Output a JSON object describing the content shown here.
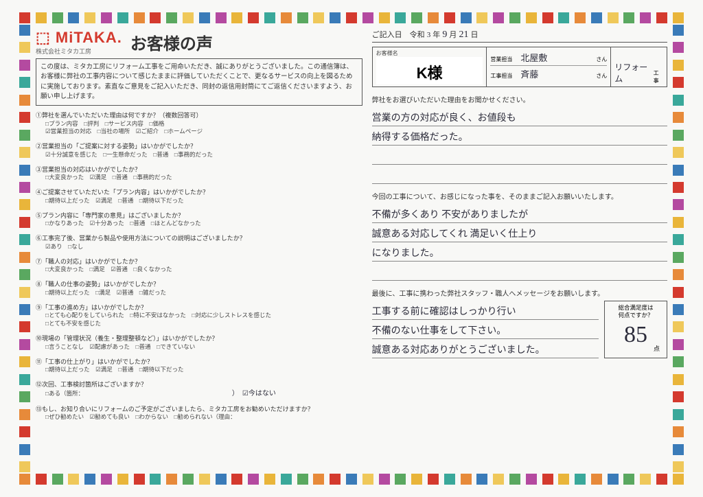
{
  "border_colors": [
    "#d43a2e",
    "#e9b53a",
    "#5aa860",
    "#3a7bb8",
    "#efc85a",
    "#b44aa0",
    "#3aa89a",
    "#e78a3a",
    "#d43a2e",
    "#5aa860",
    "#efc85a",
    "#3a7bb8",
    "#b44aa0",
    "#e9b53a",
    "#d43a2e",
    "#3aa89a",
    "#e78a3a",
    "#5aa860",
    "#efc85a",
    "#3a7bb8",
    "#d43a2e",
    "#b44aa0",
    "#e9b53a",
    "#3aa89a",
    "#5aa860",
    "#e78a3a",
    "#d43a2e",
    "#3a7bb8",
    "#efc85a",
    "#b44aa0",
    "#5aa860",
    "#e9b53a",
    "#d43a2e",
    "#3aa89a",
    "#e78a3a",
    "#3a7bb8",
    "#efc85a",
    "#5aa860",
    "#b44aa0",
    "#d43a2e",
    "#e9b53a",
    "#3aa89a",
    "#e78a3a",
    "#3a7bb8",
    "#5aa860",
    "#efc85a"
  ],
  "logo": {
    "main": "⬚ MiTAKA.",
    "sub": "株式会社ミタカ工房"
  },
  "title": "お客様の声",
  "intro": "この度は、ミタカ工房にリフォーム工事をご用命いただき、誠にありがとうございました。この通信簿は、お客様に弊社の工事内容について感じたままに評価していただくことで、更なるサービスの向上を図るために実施しております。素直なご意見をご記入いただき、同封の返信用封筒にてご返信くださいますよう、お願い申し上げます。",
  "questions": [
    {
      "t": "①弊社を選んでいただいた理由は何ですか？（複数回答可）",
      "o": "□プラン内容　□評判　□サービス内容　□価格\n☑営業担当の対応　□当社の場所　☑ご紹介　□ホームページ"
    },
    {
      "t": "②営業担当の「ご提案に対する姿勢」はいかがでしたか？",
      "o": "☑十分誠意を感じた　□一生懸命だった　□普通　□事務的だった"
    },
    {
      "t": "③営業担当の対応はいかがでしたか？",
      "o": "□大変良かった　☑満足　□普通　□事務的だった"
    },
    {
      "t": "④ご提案させていただいた「プラン内容」はいかがでしたか？",
      "o": "□期待以上だった　☑満足　□普通　□期待以下だった"
    },
    {
      "t": "⑤プラン内容に「専門家の意見」はございましたか？",
      "o": "□かなりあった　☑十分あった　□普通　□ほとんどなかった"
    },
    {
      "t": "⑥工事完了後、営業から製品や使用方法についての説明はございましたか？",
      "o": "☑あり　□なし"
    },
    {
      "t": "⑦「職人の対応」はいかがでしたか？",
      "o": "□大変良かった　□満足　☑普通　□良くなかった"
    },
    {
      "t": "⑧「職人の仕事の姿勢」はいかがでしたか？",
      "o": "□期待以上だった　□満足　☑普通　□雑だった"
    },
    {
      "t": "⑨「工事の進め方」はいかがでしたか？",
      "o": "□とても心配りをしていられた　□特に不安はなかった　□対応に少しストレスを感じた\n□とても不安を感じた"
    },
    {
      "t": "⑩現場の「管理状況（養生・整理整頓など）」はいかがでしたか？",
      "o": "□言うことなし　☑配慮があった　□普通　□できていない"
    },
    {
      "t": "⑪「工事の仕上がり」はいかがでしたか？",
      "o": "□期待以上だった　☑満足　□普通　□期待以下だった"
    },
    {
      "t": "⑫次回、工事検討箇所はございますか？",
      "o": "□ある（箇所："
    },
    {
      "t": "⑬もし、お知り合いにリフォームのご予定がございましたら、ミタカ工房をお勧めいただけますか？",
      "o": "□ぜひ勧めたい　☑勧めても良い　□わからない　□勧められない（理由："
    }
  ],
  "q12_note": "）　☑今はない",
  "date": {
    "label": "ご記入日　令和",
    "era": "3",
    "m_lbl": "年",
    "month": "9",
    "d_lbl": "月",
    "day": "21",
    "suf": "日"
  },
  "customer": {
    "lbl": "お客様名",
    "val": "K様"
  },
  "staff": {
    "sales_lbl": "営業担当",
    "sales": "北屋敷",
    "suf": "さん",
    "work_lbl": "工事担当",
    "work": "斉藤"
  },
  "type": {
    "a": "リフォーム",
    "b": "工事"
  },
  "sec1": {
    "label": "弊社をお選びいただいた理由をお聞かせください。",
    "lines": [
      "営業の方の対応が良く、お値段も",
      "納得する価格だった。",
      "",
      ""
    ]
  },
  "sec2": {
    "label": "今回の工事について、お感じになった事を、そのままご記入お願いいたします。",
    "lines": [
      "不備が多くあり 不安がありましたが",
      "誠意ある対応してくれ 満足いく仕上り",
      "になりました。",
      ""
    ]
  },
  "sec3": {
    "label": "最後に、工事に携わった弊社スタッフ・職人へメッセージをお願いします。",
    "lines": [
      "工事する前に確認はしっかり行い",
      "不備のない仕事をして下さい。",
      "誠意ある対応ありがとうございました。"
    ]
  },
  "score": {
    "lbl": "総合満足度は\n何点ですか？",
    "val": "85",
    "unit": "点"
  }
}
